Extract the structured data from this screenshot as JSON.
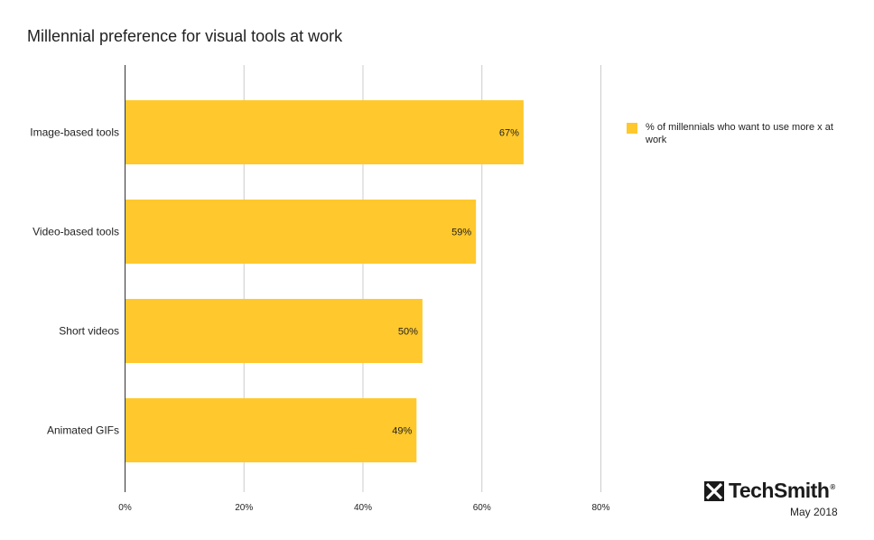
{
  "chart_data": {
    "type": "bar",
    "orientation": "horizontal",
    "title": "Millennial preference for visual tools at work",
    "categories": [
      "Image-based tools",
      "Video-based tools",
      "Short videos",
      "Animated GIFs"
    ],
    "series": [
      {
        "name": "% of millennials who want to use more x at work",
        "values": [
          67,
          59,
          50,
          49
        ],
        "labels": [
          "67%",
          "59%",
          "50%",
          "49%"
        ],
        "color": "#FFC82C"
      }
    ],
    "xlim": [
      0,
      80
    ],
    "xticks": [
      "0%",
      "20%",
      "40%",
      "60%",
      "80%"
    ],
    "grid": true,
    "legend_position": "right"
  },
  "branding": {
    "logo_text": "TechSmith",
    "registered_mark": "®",
    "date": "May 2018",
    "logo_icon": "techsmith-x-icon"
  }
}
